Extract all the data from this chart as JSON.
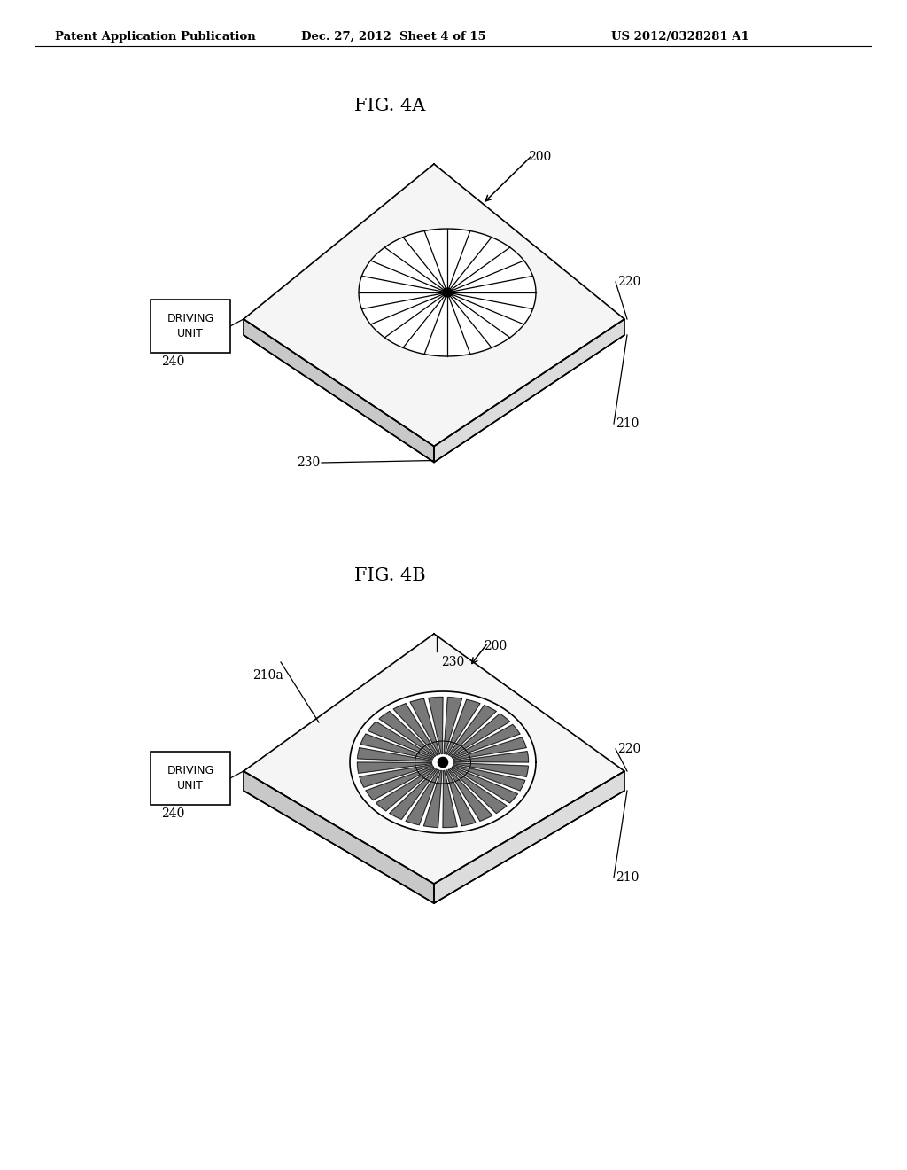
{
  "background_color": "#ffffff",
  "header_left": "Patent Application Publication",
  "header_mid": "Dec. 27, 2012  Sheet 4 of 15",
  "header_right": "US 2012/0328281 A1",
  "fig4a_title": "FIG. 4A",
  "fig4b_title": "FIG. 4B",
  "label_200": "200",
  "label_210": "210",
  "label_220": "220",
  "label_230": "230",
  "label_240": "240",
  "label_210a": "210a",
  "driving_unit": "DRIVING\nUNIT",
  "line_color": "#000000",
  "face_color_top": "#f5f5f5",
  "face_color_side_l": "#d0d0d0",
  "face_color_side_r": "#e0e0e0"
}
